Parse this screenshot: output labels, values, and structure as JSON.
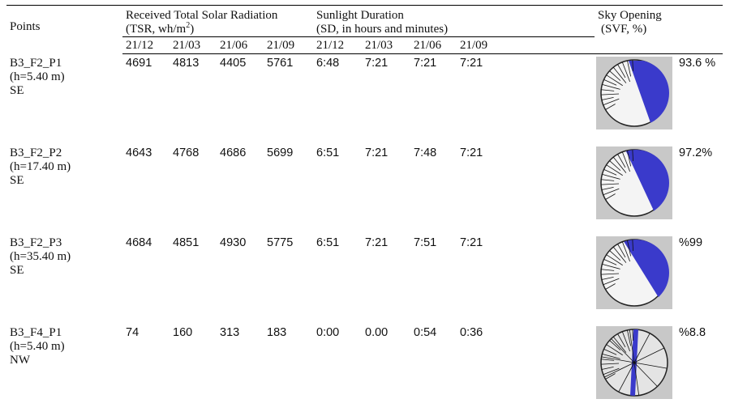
{
  "header": {
    "points": "Points",
    "tsr_title": "Received Total Solar Radiation",
    "tsr_unit_prefix": "(TSR, wh/m",
    "tsr_unit_sup": "2",
    "tsr_unit_suffix": ")",
    "sd_title": "Sunlight Duration",
    "sd_unit": "(SD, in hours and minutes)",
    "svf_title": "Sky Opening",
    "svf_unit": "(SVF, %)",
    "tsr_dates": [
      "21/12",
      "21/03",
      "21/06",
      "21/09"
    ],
    "sd_dates": [
      "21/12",
      "21/03",
      "21/06",
      "21/09"
    ]
  },
  "rows": [
    {
      "point": "B3_F2_P1",
      "height": "(h=5.40  m)",
      "orientation": "SE",
      "tsr": [
        4691,
        4813,
        4405,
        5761
      ],
      "sd": [
        "6:48",
        "7:21",
        "7:21",
        "7:21"
      ],
      "svf": "93.6 %"
    },
    {
      "point": "B3_F2_P2",
      "height": "(h=17.40 m)",
      "orientation": "SE",
      "tsr": [
        4643,
        4768,
        4686,
        5699
      ],
      "sd": [
        "6:51",
        "7:21",
        "7:48",
        "7:21"
      ],
      "svf": "97.2%"
    },
    {
      "point": "B3_F2_P3",
      "height": "(h=35.40 m)",
      "orientation": "SE",
      "tsr": [
        4684,
        4851,
        4930,
        5775
      ],
      "sd": [
        "6:51",
        "7:21",
        "7:51",
        "7:21"
      ],
      "svf": "%99"
    },
    {
      "point": "B3_F4_P1",
      "height": "(h=5.40 m)",
      "orientation": "NW",
      "tsr": [
        74,
        160,
        313,
        183
      ],
      "sd": [
        "0:00",
        "0.00",
        "0:54",
        "0:36"
      ],
      "svf": "%8.8"
    }
  ]
}
